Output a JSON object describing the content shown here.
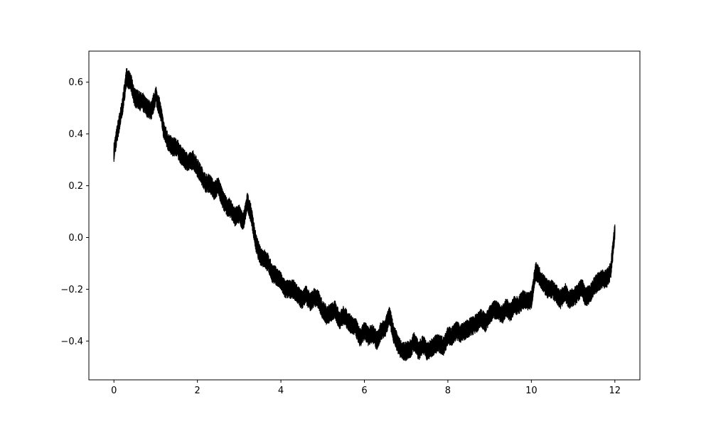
{
  "chart_data": {
    "type": "line",
    "title": "",
    "xlabel": "",
    "ylabel": "",
    "xlim": [
      -0.6,
      12.6
    ],
    "ylim": [
      -0.55,
      0.72
    ],
    "xticks": [
      0,
      2,
      4,
      6,
      8,
      10,
      12
    ],
    "xtick_labels": [
      "0",
      "2",
      "4",
      "6",
      "8",
      "10",
      "12"
    ],
    "yticks": [
      -0.4,
      -0.2,
      0.0,
      0.2,
      0.4,
      0.6
    ],
    "ytick_labels": [
      "−0.4",
      "−0.2",
      "0.0",
      "0.2",
      "0.4",
      "0.6"
    ],
    "grid": false,
    "legend": false,
    "line_color": "#000000",
    "band_halfwidth": 0.02,
    "series": [
      {
        "x": [
          0.0,
          0.1,
          0.2,
          0.3,
          0.4,
          0.5,
          0.6,
          0.7,
          0.8,
          0.9,
          1.0,
          1.1,
          1.2,
          1.3,
          1.4,
          1.5,
          1.6,
          1.7,
          1.8,
          1.9,
          2.0,
          2.1,
          2.2,
          2.3,
          2.4,
          2.5,
          2.6,
          2.7,
          2.8,
          2.9,
          3.0,
          3.1,
          3.2,
          3.3,
          3.4,
          3.5,
          3.6,
          3.7,
          3.8,
          3.9,
          4.0,
          4.1,
          4.2,
          4.3,
          4.4,
          4.5,
          4.6,
          4.7,
          4.8,
          4.9,
          5.0,
          5.1,
          5.2,
          5.3,
          5.4,
          5.5,
          5.6,
          5.7,
          5.8,
          5.9,
          6.0,
          6.1,
          6.2,
          6.3,
          6.4,
          6.5,
          6.6,
          6.7,
          6.8,
          6.9,
          7.0,
          7.1,
          7.2,
          7.3,
          7.4,
          7.5,
          7.6,
          7.7,
          7.8,
          7.9,
          8.0,
          8.1,
          8.2,
          8.3,
          8.4,
          8.5,
          8.6,
          8.7,
          8.8,
          8.9,
          9.0,
          9.1,
          9.2,
          9.3,
          9.4,
          9.5,
          9.6,
          9.7,
          9.8,
          9.9,
          10.0,
          10.1,
          10.2,
          10.3,
          10.4,
          10.5,
          10.6,
          10.7,
          10.8,
          10.9,
          11.0,
          11.1,
          11.2,
          11.3,
          11.4,
          11.5,
          11.6,
          11.7,
          11.8,
          11.9,
          12.0
        ],
        "y": [
          0.33,
          0.42,
          0.5,
          0.62,
          0.6,
          0.54,
          0.53,
          0.52,
          0.5,
          0.49,
          0.55,
          0.5,
          0.41,
          0.37,
          0.35,
          0.35,
          0.32,
          0.3,
          0.29,
          0.3,
          0.27,
          0.24,
          0.21,
          0.21,
          0.18,
          0.2,
          0.15,
          0.12,
          0.11,
          0.08,
          0.09,
          0.06,
          0.14,
          0.08,
          -0.02,
          -0.07,
          -0.08,
          -0.1,
          -0.14,
          -0.15,
          -0.17,
          -0.2,
          -0.2,
          -0.2,
          -0.22,
          -0.24,
          -0.22,
          -0.25,
          -0.23,
          -0.24,
          -0.28,
          -0.3,
          -0.29,
          -0.28,
          -0.32,
          -0.3,
          -0.32,
          -0.34,
          -0.35,
          -0.39,
          -0.36,
          -0.38,
          -0.37,
          -0.4,
          -0.36,
          -0.35,
          -0.3,
          -0.37,
          -0.41,
          -0.44,
          -0.44,
          -0.43,
          -0.4,
          -0.44,
          -0.41,
          -0.44,
          -0.43,
          -0.41,
          -0.41,
          -0.42,
          -0.38,
          -0.38,
          -0.36,
          -0.37,
          -0.36,
          -0.35,
          -0.34,
          -0.33,
          -0.31,
          -0.33,
          -0.3,
          -0.28,
          -0.28,
          -0.3,
          -0.27,
          -0.29,
          -0.26,
          -0.26,
          -0.24,
          -0.25,
          -0.24,
          -0.13,
          -0.15,
          -0.18,
          -0.2,
          -0.2,
          -0.22,
          -0.24,
          -0.21,
          -0.24,
          -0.23,
          -0.22,
          -0.19,
          -0.23,
          -0.22,
          -0.19,
          -0.17,
          -0.16,
          -0.16,
          -0.13,
          0.03
        ]
      }
    ]
  }
}
